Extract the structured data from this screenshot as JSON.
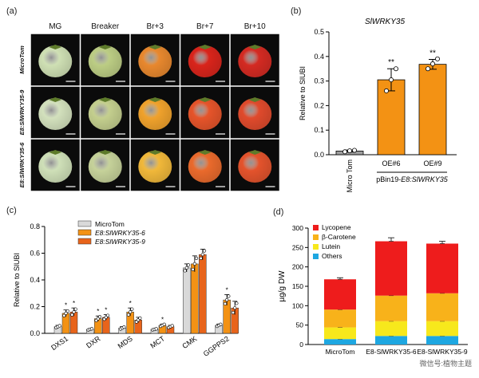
{
  "panel_a": {
    "letter": "(a)",
    "stages": [
      "MG",
      "Breaker",
      "Br+3",
      "Br+7",
      "Br+10"
    ],
    "rows": [
      {
        "label": "MicroTom",
        "colors": [
          "#cfe0b4",
          "#bccd84",
          "#e8882e",
          "#d9241b",
          "#d42a22"
        ]
      },
      {
        "label": "E8:SlWRKY35-9",
        "colors": [
          "#d3e1bd",
          "#c4cf8e",
          "#f0a22c",
          "#e6542a",
          "#e04a2c"
        ]
      },
      {
        "label": "E8:SlWRKY35-6",
        "colors": [
          "#cfe0b8",
          "#c6d29a",
          "#f1b83a",
          "#ea6a2c",
          "#e4532c"
        ]
      }
    ]
  },
  "chart_data": [
    {
      "panel": "(b)",
      "type": "bar",
      "title": "SlWRKY35",
      "ylabel": "Relative to SlUBI",
      "ylim": [
        0,
        0.5
      ],
      "yticks": [
        "0.0",
        "0.1",
        "0.2",
        "0.3",
        "0.4",
        "0.5"
      ],
      "categories": [
        "Micro Tom",
        "OE#6",
        "OE#9"
      ],
      "values": [
        0.015,
        0.305,
        0.368
      ],
      "errors": [
        0.004,
        0.045,
        0.02
      ],
      "points": [
        [
          0.012,
          0.016,
          0.018
        ],
        [
          0.26,
          0.305,
          0.35
        ],
        [
          0.35,
          0.37,
          0.39
        ]
      ],
      "significance": [
        "",
        "**",
        "**"
      ],
      "colors": [
        "#9e9e9e",
        "#f39214",
        "#f39214"
      ],
      "group_label_prefix": "pBin19-",
      "group_label_gene": "E8:SlWRKY35"
    },
    {
      "panel": "(c)",
      "type": "bar",
      "ylabel": "Relative to SlUBI",
      "ylim": [
        0,
        0.8
      ],
      "yticks": [
        "0.0",
        "0.2",
        "0.4",
        "0.6",
        "0.8"
      ],
      "categories": [
        "DXS1",
        "DXR",
        "MDS",
        "MCT",
        "CMK",
        "GGPPS2"
      ],
      "series": [
        {
          "name": "MicroTom",
          "color": "#d9d9d9",
          "values": [
            0.05,
            0.03,
            0.04,
            0.03,
            0.49,
            0.06
          ],
          "errors": [
            0.01,
            0.006,
            0.01,
            0.005,
            0.03,
            0.01
          ],
          "sig": [
            "",
            "",
            "",
            "",
            "",
            ""
          ]
        },
        {
          "name": "E8:SlWRKY35-6",
          "color": "#f39214",
          "values": [
            0.15,
            0.11,
            0.16,
            0.06,
            0.52,
            0.25
          ],
          "errors": [
            0.025,
            0.02,
            0.03,
            0.01,
            0.06,
            0.04
          ],
          "sig": [
            "*",
            "*",
            "*",
            "*",
            "",
            "*"
          ]
        },
        {
          "name": "E8:SlWRKY35-9",
          "color": "#e8641b",
          "values": [
            0.16,
            0.12,
            0.1,
            0.05,
            0.59,
            0.19
          ],
          "errors": [
            0.03,
            0.02,
            0.02,
            0.01,
            0.04,
            0.05
          ],
          "sig": [
            "*",
            "*",
            "",
            "",
            "",
            ""
          ]
        }
      ]
    },
    {
      "panel": "(d)",
      "type": "bar",
      "stacked": true,
      "ylabel": "µg/g DW",
      "ylim": [
        0,
        300
      ],
      "yticks": [
        "0",
        "50",
        "100",
        "150",
        "200",
        "250",
        "300"
      ],
      "categories": [
        "MicroTom",
        "E8-SlWRKY35-6",
        "E8-SlWRKY35-9"
      ],
      "series": [
        {
          "name": "Others",
          "color": "#1ea7e1",
          "values": [
            14,
            22,
            22
          ]
        },
        {
          "name": "Lutein",
          "color": "#f7e81c",
          "values": [
            30,
            38,
            38
          ]
        },
        {
          "name": "β-Carotene",
          "color": "#f8b21a",
          "values": [
            46,
            66,
            72
          ]
        },
        {
          "name": "Lycopene",
          "color": "#ee1c1c",
          "values": [
            78,
            140,
            128
          ]
        }
      ],
      "totals_err": [
        4,
        9,
        6
      ],
      "legend_order": [
        "Lycopene",
        "β-Carotene",
        "Lutein",
        "Others"
      ]
    }
  ],
  "watermark": "微信号:植物主题"
}
